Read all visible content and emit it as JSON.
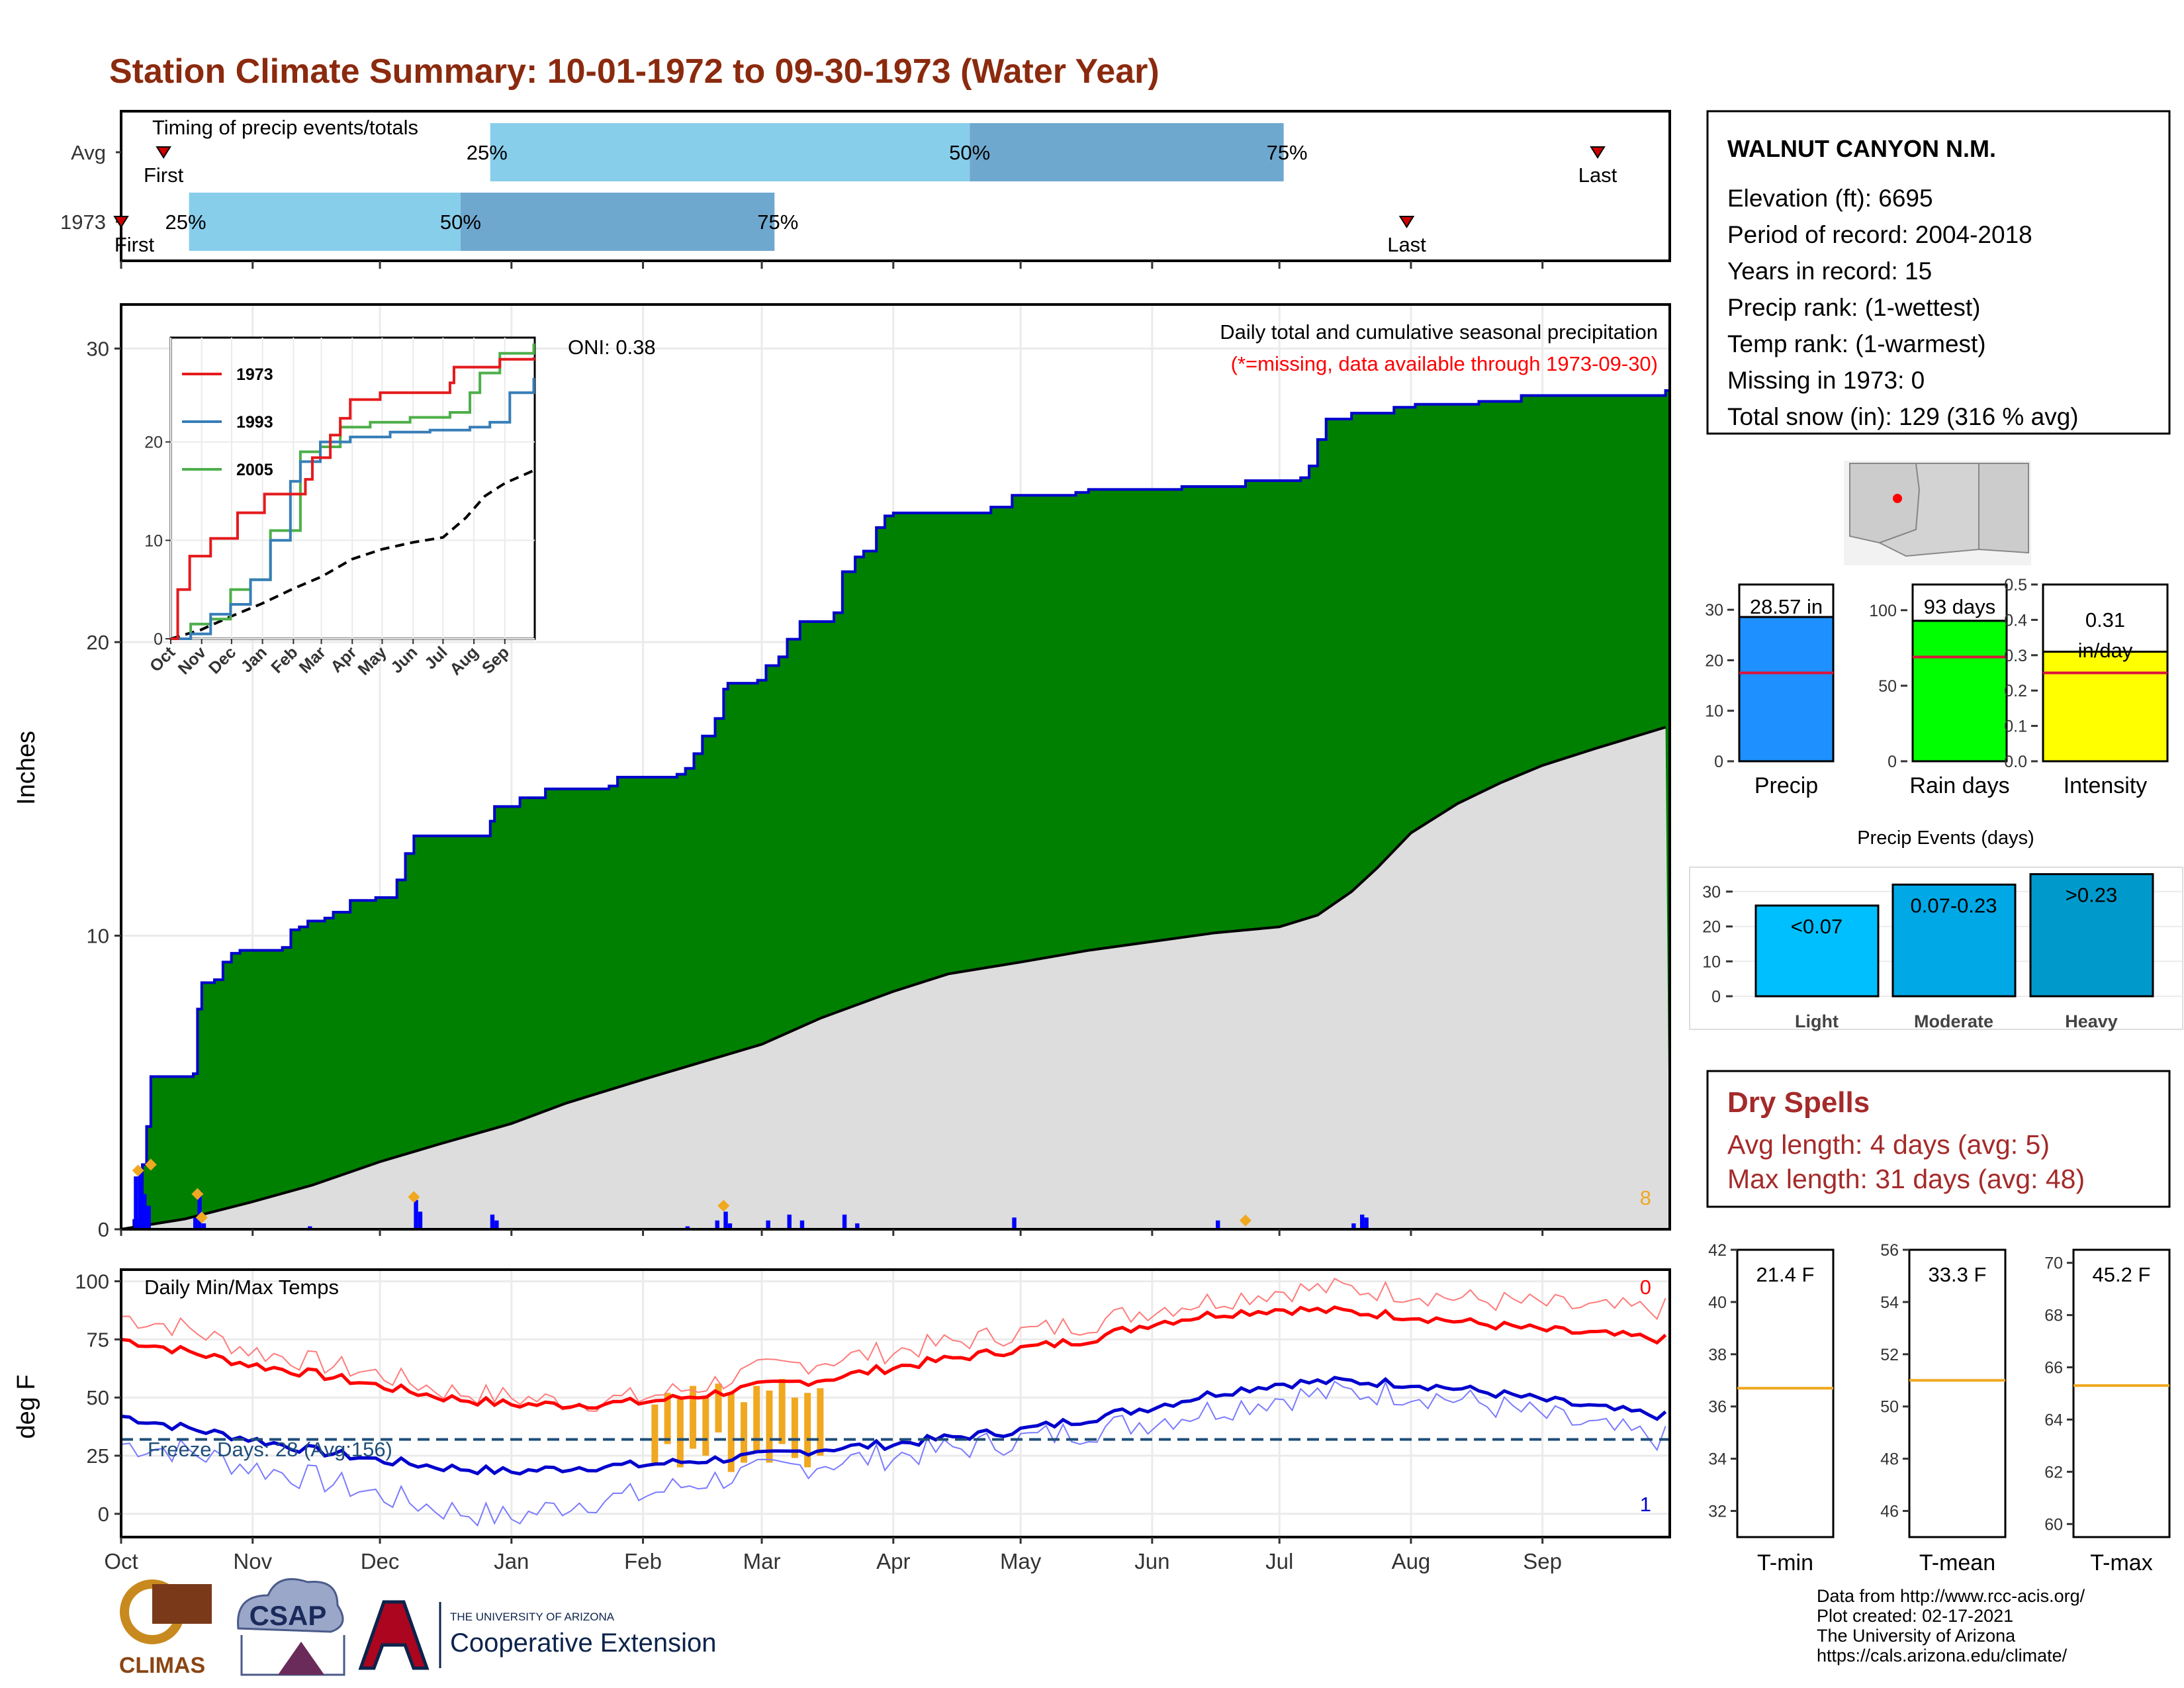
{
  "title": "Station Climate Summary: 10-01-1972 to 09-30-1973 (Water Year)",
  "colors": {
    "title": "#8b2a0e",
    "precip_fill": "#008000",
    "cum_line": "#0000cd",
    "avg_fill": "#dddddd",
    "q_light": "#87ceeb",
    "q_dark": "#6fa8cf",
    "tmax": "#ff0000",
    "tmin": "#0000cd",
    "snow": "#f0a820",
    "dry": "#a52a2a"
  },
  "timing": {
    "title": "Timing of precip events/totals",
    "rows": [
      {
        "label": "Avg",
        "first": "First",
        "last": "Last",
        "q25": "25%",
        "q50": "50%",
        "q75": "75%",
        "first_day": 10,
        "q25_day": 87,
        "q50_day": 200,
        "q75_day": 274,
        "last_day": 348
      },
      {
        "label": "1973",
        "first": "First",
        "last": "Last",
        "q25": "25%",
        "q50": "50%",
        "q75": "75%",
        "first_day": 0,
        "q25_day": 16,
        "q50_day": 80,
        "q75_day": 154,
        "last_day": 303
      }
    ]
  },
  "station": {
    "name": "WALNUT CANYON N.M.",
    "lines": [
      "Elevation (ft): 6695",
      "Period of record: 2004-2018",
      "Years in record: 15",
      "Precip rank:  (1-wettest)",
      "Temp rank:  (1-warmest)",
      "Missing in 1973: 0",
      "Total snow (in): 129 (316 % avg)"
    ]
  },
  "months": [
    "Oct",
    "Nov",
    "Dec",
    "Jan",
    "Feb",
    "Mar",
    "Apr",
    "May",
    "Jun",
    "Jul",
    "Aug",
    "Sep"
  ],
  "month_starts": [
    0,
    31,
    61,
    92,
    123,
    151,
    182,
    212,
    243,
    273,
    304,
    335
  ],
  "main_chart": {
    "title": "Daily total and cumulative seasonal precipitation",
    "subtitle": "(*=missing, data available through 1973-09-30)",
    "oni": "ONI: 0.38",
    "ylabel": "Inches",
    "ylim": [
      0,
      31.5
    ],
    "yticks": [
      0,
      10,
      20,
      30
    ],
    "snow_days_label": "8"
  },
  "chart_data": {
    "type": "area",
    "cumulative_1973": [
      [
        0,
        0
      ],
      [
        3,
        0.3
      ],
      [
        5,
        2.2
      ],
      [
        6,
        3.5
      ],
      [
        7,
        5.2
      ],
      [
        17,
        5.3
      ],
      [
        18,
        7.5
      ],
      [
        19,
        8.4
      ],
      [
        22,
        8.5
      ],
      [
        24,
        9.1
      ],
      [
        26,
        9.4
      ],
      [
        28,
        9.5
      ],
      [
        38,
        9.6
      ],
      [
        40,
        10.2
      ],
      [
        42,
        10.3
      ],
      [
        44,
        10.5
      ],
      [
        48,
        10.6
      ],
      [
        50,
        10.8
      ],
      [
        54,
        11.2
      ],
      [
        60,
        11.3
      ],
      [
        65,
        11.9
      ],
      [
        67,
        12.8
      ],
      [
        69,
        13.4
      ],
      [
        87,
        13.9
      ],
      [
        88,
        14.4
      ],
      [
        94,
        14.7
      ],
      [
        100,
        15.0
      ],
      [
        115,
        15.1
      ],
      [
        117,
        15.4
      ],
      [
        131,
        15.5
      ],
      [
        133,
        15.7
      ],
      [
        135,
        16.2
      ],
      [
        137,
        16.8
      ],
      [
        140,
        17.4
      ],
      [
        142,
        18.4
      ],
      [
        143,
        18.6
      ],
      [
        150,
        18.7
      ],
      [
        152,
        19.2
      ],
      [
        155,
        19.5
      ],
      [
        157,
        20.1
      ],
      [
        160,
        20.7
      ],
      [
        168,
        21.0
      ],
      [
        170,
        22.4
      ],
      [
        173,
        22.9
      ],
      [
        175,
        23.1
      ],
      [
        178,
        23.9
      ],
      [
        180,
        24.3
      ],
      [
        182,
        24.4
      ],
      [
        205,
        24.6
      ],
      [
        210,
        25.0
      ],
      [
        225,
        25.1
      ],
      [
        228,
        25.2
      ],
      [
        250,
        25.3
      ],
      [
        265,
        25.5
      ],
      [
        278,
        25.6
      ],
      [
        280,
        26.0
      ],
      [
        282,
        26.9
      ],
      [
        284,
        27.6
      ],
      [
        290,
        27.8
      ],
      [
        300,
        28.0
      ],
      [
        305,
        28.1
      ],
      [
        320,
        28.2
      ],
      [
        330,
        28.4
      ],
      [
        364,
        28.57
      ]
    ],
    "average_cumulative": [
      [
        0,
        0
      ],
      [
        15,
        0.35
      ],
      [
        30,
        0.9
      ],
      [
        45,
        1.5
      ],
      [
        61,
        2.3
      ],
      [
        75,
        2.9
      ],
      [
        92,
        3.6
      ],
      [
        105,
        4.3
      ],
      [
        123,
        5.1
      ],
      [
        137,
        5.7
      ],
      [
        151,
        6.3
      ],
      [
        165,
        7.2
      ],
      [
        182,
        8.1
      ],
      [
        195,
        8.7
      ],
      [
        212,
        9.1
      ],
      [
        228,
        9.5
      ],
      [
        243,
        9.8
      ],
      [
        258,
        10.1
      ],
      [
        273,
        10.3
      ],
      [
        282,
        10.7
      ],
      [
        290,
        11.5
      ],
      [
        296,
        12.3
      ],
      [
        304,
        13.5
      ],
      [
        315,
        14.5
      ],
      [
        325,
        15.2
      ],
      [
        335,
        15.8
      ],
      [
        348,
        16.4
      ],
      [
        364,
        17.1
      ]
    ],
    "daily_precip": [
      [
        3,
        1.8
      ],
      [
        4,
        2.1
      ],
      [
        5,
        1.2
      ],
      [
        6,
        0.8
      ],
      [
        17,
        0.4
      ],
      [
        18,
        1.3
      ],
      [
        19,
        0.2
      ],
      [
        44,
        0.1
      ],
      [
        69,
        1.0
      ],
      [
        70,
        0.6
      ],
      [
        87,
        0.5
      ],
      [
        88,
        0.3
      ],
      [
        133,
        0.1
      ],
      [
        140,
        0.3
      ],
      [
        142,
        0.6
      ],
      [
        143,
        0.2
      ],
      [
        152,
        0.3
      ],
      [
        157,
        0.5
      ],
      [
        160,
        0.3
      ],
      [
        170,
        0.5
      ],
      [
        173,
        0.2
      ],
      [
        210,
        0.4
      ],
      [
        258,
        0.3
      ],
      [
        290,
        0.2
      ],
      [
        292,
        0.5
      ],
      [
        293,
        0.4
      ]
    ],
    "snow_marks": [
      [
        4,
        2.0
      ],
      [
        7,
        2.2
      ],
      [
        18,
        1.2
      ],
      [
        19,
        0.4
      ],
      [
        69,
        1.1
      ],
      [
        142,
        0.8
      ],
      [
        265,
        0.3
      ]
    ],
    "inset": {
      "legend": [
        "1973",
        "1993",
        "2005"
      ],
      "colors": [
        "#e41a1c",
        "#377eb8",
        "#4daf4a"
      ],
      "months": [
        "Oct",
        "Nov",
        "Dec",
        "Jan",
        "Feb",
        "Mar",
        "Apr",
        "May",
        "Jun",
        "Jul",
        "Aug",
        "Sep"
      ],
      "ylim": [
        0,
        30
      ],
      "yticks": [
        0,
        10,
        20
      ],
      "series_1973": [
        [
          0,
          0
        ],
        [
          7,
          5
        ],
        [
          19,
          8.4
        ],
        [
          40,
          10.2
        ],
        [
          67,
          12.8
        ],
        [
          94,
          14.7
        ],
        [
          135,
          16.2
        ],
        [
          142,
          18.4
        ],
        [
          160,
          20.7
        ],
        [
          170,
          22.4
        ],
        [
          180,
          24.3
        ],
        [
          210,
          25.0
        ],
        [
          280,
          26.0
        ],
        [
          284,
          27.6
        ],
        [
          330,
          28.4
        ],
        [
          364,
          28.6
        ]
      ],
      "series_1993": [
        [
          0,
          0
        ],
        [
          20,
          0.5
        ],
        [
          40,
          2.5
        ],
        [
          60,
          3.5
        ],
        [
          80,
          6
        ],
        [
          100,
          10
        ],
        [
          120,
          16
        ],
        [
          130,
          18
        ],
        [
          150,
          20
        ],
        [
          180,
          20.5
        ],
        [
          220,
          21
        ],
        [
          260,
          21.2
        ],
        [
          300,
          21.5
        ],
        [
          320,
          22
        ],
        [
          340,
          25
        ],
        [
          364,
          26.5
        ]
      ],
      "series_2005": [
        [
          0,
          0
        ],
        [
          20,
          1.5
        ],
        [
          40,
          2
        ],
        [
          60,
          5
        ],
        [
          80,
          6
        ],
        [
          100,
          11
        ],
        [
          130,
          19
        ],
        [
          150,
          19.5
        ],
        [
          170,
          21.5
        ],
        [
          200,
          22
        ],
        [
          240,
          22.5
        ],
        [
          280,
          23
        ],
        [
          300,
          25
        ],
        [
          310,
          27
        ],
        [
          330,
          29
        ],
        [
          364,
          30
        ]
      ],
      "series_avg": [
        [
          0,
          0
        ],
        [
          30,
          0.9
        ],
        [
          61,
          2.3
        ],
        [
          92,
          3.6
        ],
        [
          123,
          5.1
        ],
        [
          151,
          6.3
        ],
        [
          182,
          8.1
        ],
        [
          212,
          9.1
        ],
        [
          243,
          9.8
        ],
        [
          273,
          10.3
        ],
        [
          296,
          12.3
        ],
        [
          315,
          14.5
        ],
        [
          335,
          15.8
        ],
        [
          364,
          17.1
        ]
      ]
    },
    "bars": [
      {
        "label": "Precip",
        "value": 28.57,
        "text": "28.57 in",
        "avg": 17.5,
        "ylim": [
          0,
          35
        ],
        "yticks": [
          0,
          10,
          20,
          30
        ],
        "color": "#1e90ff"
      },
      {
        "label": "Rain days",
        "value": 93,
        "text": "93 days",
        "avg": 69,
        "ylim": [
          0,
          117
        ],
        "yticks": [
          0,
          50,
          100
        ],
        "color": "#00ff00"
      },
      {
        "label": "Intensity",
        "value": 0.31,
        "text_top": "0.31",
        "text_bottom": "in/day",
        "avg": 0.25,
        "ylim": [
          0,
          0.5
        ],
        "yticks": [
          0.0,
          0.1,
          0.2,
          0.3,
          0.4,
          0.5
        ],
        "color": "#ffff00"
      }
    ],
    "precip_events": {
      "title": "Precip Events (days)",
      "categories": [
        "Light",
        "Moderate",
        "Heavy"
      ],
      "labels": [
        "<0.07",
        "0.07-0.23",
        ">0.23"
      ],
      "values": [
        26,
        32,
        35
      ],
      "ylim": [
        0,
        37
      ],
      "yticks": [
        0,
        10,
        20,
        30
      ],
      "colors": [
        "#00bfff",
        "#00a8e6",
        "#0099cc"
      ]
    },
    "temp_chart": {
      "title": "Daily Min/Max Temps",
      "ylabel": "deg F",
      "ylim": [
        -10,
        105
      ],
      "yticks": [
        0,
        25,
        50,
        75,
        100
      ],
      "freeze_line": 32,
      "freeze_label": "Freeze Days: 28 (Avg:156)",
      "top_count": "0",
      "bottom_count": "1",
      "avg_tmax": [
        [
          0,
          75
        ],
        [
          15,
          70
        ],
        [
          31,
          64
        ],
        [
          46,
          60
        ],
        [
          61,
          55
        ],
        [
          76,
          50
        ],
        [
          92,
          47
        ],
        [
          107,
          47
        ],
        [
          123,
          48
        ],
        [
          137,
          51
        ],
        [
          151,
          55
        ],
        [
          166,
          58
        ],
        [
          182,
          63
        ],
        [
          197,
          67
        ],
        [
          212,
          71
        ],
        [
          228,
          75
        ],
        [
          243,
          82
        ],
        [
          258,
          86
        ],
        [
          273,
          88
        ],
        [
          288,
          87
        ],
        [
          304,
          85
        ],
        [
          319,
          82
        ],
        [
          335,
          79
        ],
        [
          350,
          77
        ],
        [
          364,
          75
        ]
      ],
      "avg_tmin": [
        [
          0,
          42
        ],
        [
          15,
          37
        ],
        [
          31,
          32
        ],
        [
          46,
          27
        ],
        [
          61,
          23
        ],
        [
          76,
          20
        ],
        [
          92,
          18
        ],
        [
          107,
          20
        ],
        [
          123,
          21
        ],
        [
          137,
          23
        ],
        [
          151,
          25
        ],
        [
          166,
          28
        ],
        [
          182,
          30
        ],
        [
          197,
          33
        ],
        [
          212,
          36
        ],
        [
          228,
          41
        ],
        [
          243,
          46
        ],
        [
          258,
          52
        ],
        [
          273,
          56
        ],
        [
          288,
          57
        ],
        [
          304,
          56
        ],
        [
          319,
          53
        ],
        [
          335,
          49
        ],
        [
          350,
          45
        ],
        [
          364,
          42
        ]
      ],
      "obs_tmax": [
        [
          0,
          85
        ],
        [
          15,
          80
        ],
        [
          31,
          70
        ],
        [
          46,
          65
        ],
        [
          61,
          60
        ],
        [
          76,
          53
        ],
        [
          92,
          50
        ],
        [
          107,
          48
        ],
        [
          123,
          50
        ],
        [
          137,
          55
        ],
        [
          151,
          62
        ],
        [
          166,
          66
        ],
        [
          182,
          70
        ],
        [
          197,
          74
        ],
        [
          212,
          78
        ],
        [
          228,
          82
        ],
        [
          243,
          88
        ],
        [
          258,
          92
        ],
        [
          273,
          96
        ],
        [
          288,
          97
        ],
        [
          304,
          95
        ],
        [
          319,
          92
        ],
        [
          335,
          90
        ],
        [
          350,
          88
        ],
        [
          364,
          88
        ]
      ],
      "obs_tmin": [
        [
          0,
          30
        ],
        [
          15,
          27
        ],
        [
          31,
          20
        ],
        [
          46,
          15
        ],
        [
          61,
          8
        ],
        [
          76,
          2
        ],
        [
          92,
          -2
        ],
        [
          107,
          5
        ],
        [
          123,
          8
        ],
        [
          137,
          14
        ],
        [
          151,
          18
        ],
        [
          166,
          22
        ],
        [
          182,
          25
        ],
        [
          197,
          28
        ],
        [
          212,
          32
        ],
        [
          228,
          36
        ],
        [
          243,
          40
        ],
        [
          258,
          45
        ],
        [
          273,
          50
        ],
        [
          288,
          52
        ],
        [
          304,
          52
        ],
        [
          319,
          48
        ],
        [
          335,
          42
        ],
        [
          350,
          36
        ],
        [
          364,
          32
        ]
      ],
      "snow_bars": [
        [
          125,
          22,
          47
        ],
        [
          128,
          30,
          52
        ],
        [
          131,
          20,
          50
        ],
        [
          134,
          28,
          55
        ],
        [
          137,
          25,
          50
        ],
        [
          140,
          35,
          56
        ],
        [
          143,
          18,
          52
        ],
        [
          146,
          22,
          48
        ],
        [
          149,
          27,
          55
        ],
        [
          152,
          22,
          53
        ],
        [
          155,
          30,
          58
        ],
        [
          158,
          24,
          50
        ],
        [
          161,
          20,
          52
        ],
        [
          164,
          25,
          54
        ]
      ]
    },
    "temp_bars": [
      {
        "label": "T-min",
        "value": 21.4,
        "text": "21.4 F",
        "avg": 36.7,
        "ylim": [
          31,
          42
        ],
        "yticks": [
          32,
          34,
          36,
          38,
          40,
          42
        ]
      },
      {
        "label": "T-mean",
        "value": 33.3,
        "text": "33.3 F",
        "avg": 51.0,
        "ylim": [
          45,
          56
        ],
        "yticks": [
          46,
          48,
          50,
          52,
          54,
          56
        ]
      },
      {
        "label": "T-max",
        "value": 45.2,
        "text": "45.2 F",
        "avg": 65.3,
        "ylim": [
          59.5,
          70.5
        ],
        "yticks": [
          60,
          62,
          64,
          66,
          68,
          70
        ]
      }
    ]
  },
  "dry_spells": {
    "title": "Dry Spells",
    "avg": "Avg length: 4 days (avg: 5)",
    "max": "Max length: 31 days (avg: 48)"
  },
  "credits": [
    "Data from http://www.rcc-acis.org/",
    "Plot created: 02-17-2021",
    "The University of Arizona",
    "https://cals.arizona.edu/climate/"
  ],
  "logos": {
    "climas": "CLIMAS",
    "csap": "CSAP",
    "ua_small": "THE UNIVERSITY OF ARIZONA",
    "ua_big": "Cooperative Extension"
  }
}
